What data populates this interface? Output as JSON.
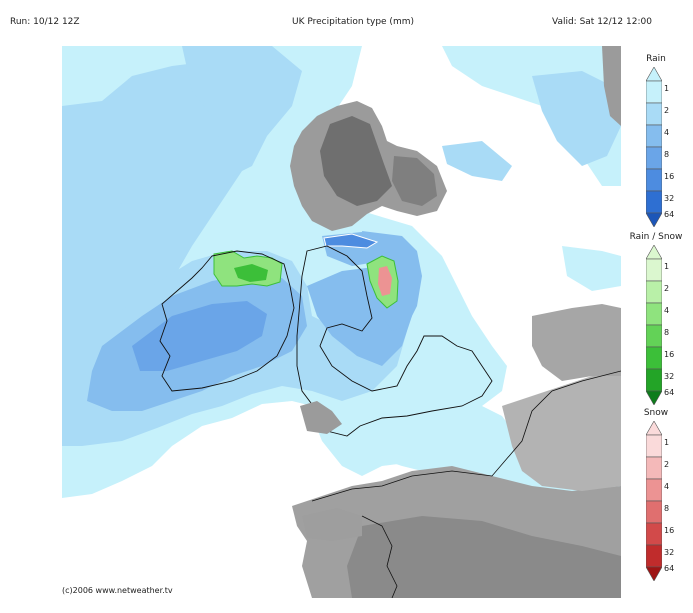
{
  "header": {
    "run": "Run: 10/12 12Z",
    "title": "UK Precipitation type (mm)",
    "valid": "Valid: Sat 12/12 12:00"
  },
  "footer": {
    "copyright": "(c)2006 www.netweather.tv"
  },
  "legends": [
    {
      "title": "Rain",
      "ticks": [
        "1",
        "2",
        "4",
        "8",
        "16",
        "32",
        "64"
      ],
      "colors": [
        "#c6f1fb",
        "#a9dbf6",
        "#85bdee",
        "#6aa5e8",
        "#4d8ce0",
        "#2e6fd2",
        "#1c56b8"
      ]
    },
    {
      "title": "Rain / Snow",
      "ticks": [
        "1",
        "2",
        "4",
        "8",
        "16",
        "32",
        "64"
      ],
      "colors": [
        "#dbf7cf",
        "#b9f0a8",
        "#8fe37e",
        "#63d257",
        "#3cbf39",
        "#23a427",
        "#0e7c1c"
      ]
    },
    {
      "title": "Snow",
      "ticks": [
        "1",
        "2",
        "4",
        "8",
        "16",
        "32",
        "64"
      ],
      "colors": [
        "#fadada",
        "#f4b9b9",
        "#ec9393",
        "#e06f6f",
        "#d24a4a",
        "#c02c2c",
        "#9e1414"
      ]
    }
  ]
}
